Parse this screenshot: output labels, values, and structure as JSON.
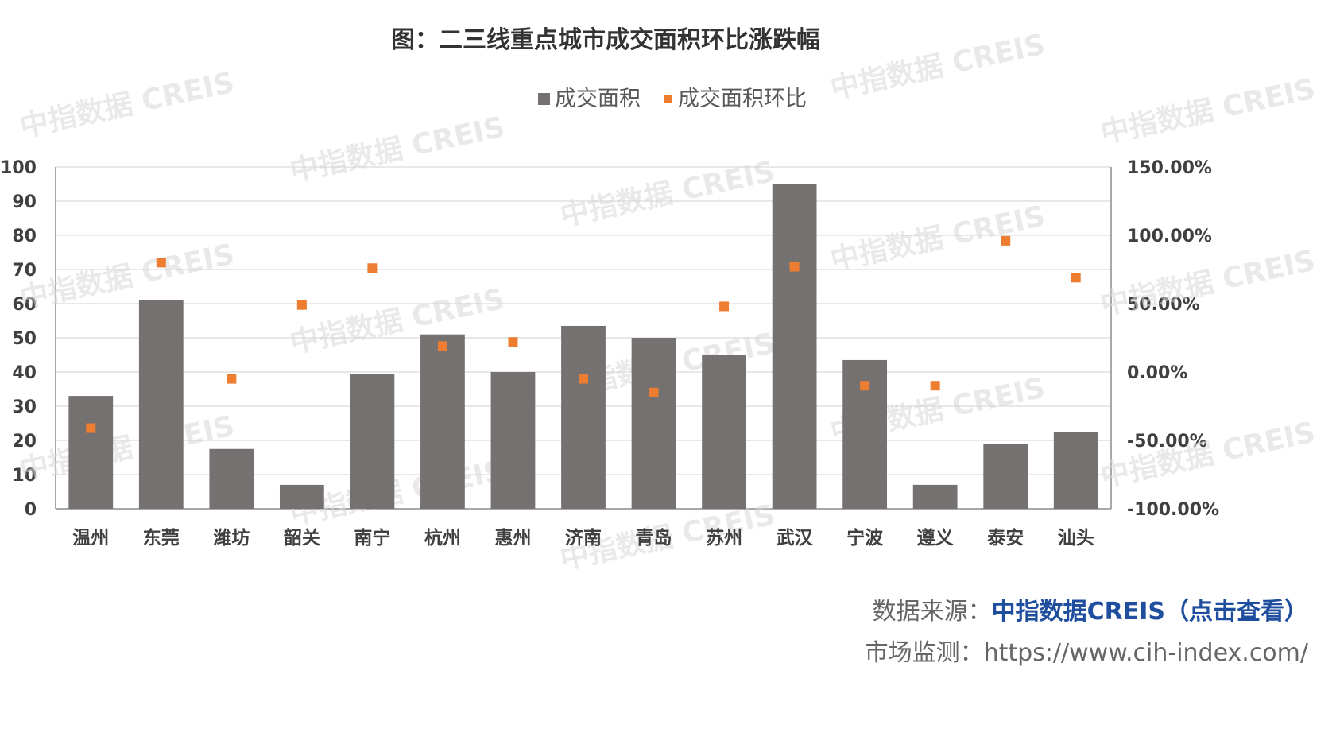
{
  "chart_data": {
    "type": "bar",
    "title": "图：二三线重点城市成交面积环比涨跌幅",
    "categories": [
      "温州",
      "东莞",
      "潍坊",
      "韶关",
      "南宁",
      "杭州",
      "惠州",
      "济南",
      "青岛",
      "苏州",
      "武汉",
      "宁波",
      "遵义",
      "泰安",
      "汕头"
    ],
    "series": [
      {
        "name": "成交面积",
        "kind": "bar",
        "axis": "left",
        "color": "#767171",
        "values": [
          33,
          61,
          17.5,
          7,
          39.5,
          51,
          40,
          53.5,
          50,
          45,
          95,
          43.5,
          7,
          19,
          22.5
        ]
      },
      {
        "name": "成交面积环比",
        "kind": "scatter",
        "axis": "right",
        "color": "#ED7D31",
        "values": [
          -41,
          80,
          -5,
          49,
          76,
          19,
          22,
          -5,
          -15,
          48,
          77,
          -10,
          -10,
          96,
          69
        ]
      }
    ],
    "y_left": {
      "min": 0,
      "max": 100,
      "step": 10,
      "ticks": [
        "0",
        "10",
        "20",
        "30",
        "40",
        "50",
        "60",
        "70",
        "80",
        "90",
        "100"
      ]
    },
    "y_right": {
      "min": -100,
      "max": 150,
      "step": 50,
      "ticks": [
        "-100.00%",
        "-50.00%",
        "0.00%",
        "50.00%",
        "100.00%",
        "150.00%"
      ]
    },
    "grid": true,
    "legend_position": "top-center"
  },
  "watermark": {
    "text": "中指数据 CREIS"
  },
  "footer": {
    "source_label": "数据来源：",
    "source_link": "中指数据CREIS（点击查看）",
    "monitor_label": "市场监测：",
    "monitor_url": "https://www.cih-index.com/"
  }
}
